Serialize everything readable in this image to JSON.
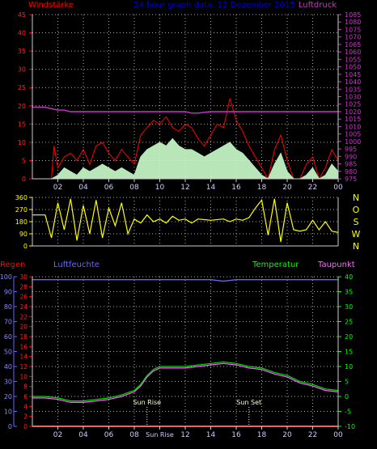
{
  "chart_data": [
    {
      "type": "line",
      "panel": "wind",
      "title": "24 hour graph data, 12 Dezember 2015",
      "left_label": "Windstärke",
      "right_label": "Luftdruck",
      "ylim": [
        0,
        45
      ],
      "y_ticks": [
        0,
        5,
        10,
        15,
        20,
        25,
        30,
        35,
        40,
        45
      ],
      "y2lim": [
        975,
        1085
      ],
      "y2_ticks": [
        975,
        980,
        985,
        990,
        995,
        1000,
        1005,
        1010,
        1015,
        1020,
        1025,
        1030,
        1035,
        1040,
        1045,
        1050,
        1055,
        1060,
        1065,
        1070,
        1075,
        1080,
        1085
      ],
      "x_ticks": [
        "02",
        "04",
        "06",
        "08",
        "10",
        "12",
        "14",
        "16",
        "18",
        "20",
        "22",
        "00"
      ],
      "grid": true,
      "series": [
        {
          "key": "gust",
          "color": "#ff0000",
          "x": [
            0,
            0.5,
            1,
            1.5,
            1.7,
            2,
            2.5,
            3,
            3.5,
            4,
            4.5,
            5,
            5.5,
            6,
            6.5,
            7,
            7.5,
            8,
            8.5,
            9,
            9.5,
            10,
            10.5,
            11,
            11.5,
            12,
            12.5,
            13,
            13.5,
            14,
            14.5,
            15,
            15.5,
            16,
            16.5,
            17,
            17.5,
            18,
            18.5,
            19,
            19.5,
            20,
            20.5,
            21,
            21.5,
            22,
            22.5,
            23,
            23.5,
            24
          ],
          "y": [
            0,
            0,
            0,
            0,
            9,
            3,
            6,
            7,
            5,
            8,
            4,
            9,
            10,
            7,
            5,
            8,
            6,
            4,
            12,
            14,
            16,
            15,
            17,
            14,
            13,
            15,
            14,
            11,
            9,
            12,
            15,
            14,
            22,
            16,
            13,
            9,
            6,
            3,
            0,
            8,
            12,
            5,
            0,
            0,
            4,
            6,
            0,
            3,
            8,
            5
          ]
        },
        {
          "key": "average",
          "color": "#ccffcc",
          "x": [
            0,
            0.5,
            1,
            1.5,
            2,
            2.5,
            3,
            3.5,
            4,
            4.5,
            5,
            5.5,
            6,
            6.5,
            7,
            7.5,
            8,
            8.5,
            9,
            9.5,
            10,
            10.5,
            11,
            11.5,
            12,
            12.5,
            13,
            13.5,
            14,
            14.5,
            15,
            15.5,
            16,
            16.5,
            17,
            17.5,
            18,
            18.5,
            19,
            19.5,
            20,
            20.5,
            21,
            21.5,
            22,
            22.5,
            23,
            23.5,
            24
          ],
          "y": [
            0,
            0,
            0,
            0,
            1,
            3,
            2,
            1,
            3,
            2,
            3,
            4,
            3,
            2,
            3,
            2,
            1,
            6,
            8,
            9,
            10,
            9,
            11,
            9,
            8,
            8,
            7,
            6,
            7,
            8,
            9,
            10,
            8,
            7,
            5,
            3,
            1,
            0,
            4,
            7,
            2,
            0,
            0,
            1,
            3,
            0,
            1,
            4,
            2
          ]
        },
        {
          "key": "pressure",
          "color": "#cc33cc",
          "x": [
            0,
            1,
            1.5,
            2,
            2.5,
            3,
            4,
            8,
            12,
            12.5,
            13,
            14,
            18,
            20,
            22,
            24
          ],
          "y": [
            1023,
            1023,
            1022,
            1021,
            1021,
            1020,
            1020,
            1020,
            1020,
            1019,
            1019,
            1020,
            1020,
            1020,
            1020,
            1020
          ]
        }
      ]
    },
    {
      "type": "line",
      "panel": "direction",
      "ylim": [
        0,
        360
      ],
      "y_ticks": [
        0,
        90,
        180,
        270,
        360
      ],
      "compass": [
        "N",
        "W",
        "S",
        "O",
        "N"
      ],
      "grid": true,
      "series": [
        {
          "key": "direction",
          "color": "#ffff00",
          "x": [
            0,
            1,
            1.5,
            2,
            2.5,
            3,
            3.5,
            4,
            4.5,
            5,
            5.5,
            6,
            6.5,
            7,
            7.5,
            8,
            8.5,
            9,
            9.5,
            10,
            10.5,
            11,
            11.5,
            12,
            12.5,
            13,
            14,
            15,
            15.5,
            16,
            16.5,
            17,
            17.5,
            18,
            18.5,
            19,
            19.5,
            20,
            20.5,
            21,
            21.5,
            22,
            22.5,
            23,
            23.5,
            24
          ],
          "y": [
            230,
            230,
            60,
            320,
            120,
            350,
            40,
            300,
            90,
            340,
            60,
            280,
            150,
            320,
            90,
            200,
            170,
            230,
            180,
            200,
            170,
            220,
            190,
            200,
            170,
            200,
            190,
            200,
            180,
            200,
            190,
            210,
            280,
            340,
            80,
            350,
            30,
            320,
            120,
            110,
            120,
            190,
            120,
            180,
            110,
            100
          ]
        }
      ]
    },
    {
      "type": "line",
      "panel": "temperature",
      "labels": {
        "rain": "Regen",
        "humidity": "Luftfeuchte",
        "temperature": "Temperatur",
        "dewpoint": "Taupunkt",
        "sunrise": "Sun Rise",
        "sunset": "Sun Set"
      },
      "y_rain_ticks": [
        0,
        2,
        4,
        6,
        8,
        10,
        12,
        14,
        16,
        18,
        20,
        22,
        24,
        26,
        28,
        30
      ],
      "y_humidity_ticks": [
        0,
        10,
        20,
        30,
        40,
        50,
        60,
        70,
        80,
        90,
        100
      ],
      "y_temp_ticks": [
        -10,
        -5,
        0,
        5,
        10,
        15,
        20,
        25,
        30,
        35,
        40
      ],
      "y_temp_lim": [
        -10,
        40
      ],
      "x_ticks": [
        "02",
        "04",
        "06",
        "08",
        "Sun Rise",
        "12",
        "14",
        "16",
        "18",
        "20",
        "22",
        "00"
      ],
      "sunrise_hour": 9,
      "sunset_hour": 17,
      "grid": true,
      "series": [
        {
          "key": "humidity",
          "color": "#6666ff",
          "x": [
            0,
            6,
            9,
            12,
            14,
            15,
            16,
            18,
            21,
            24
          ],
          "y": [
            98,
            98,
            98,
            98,
            98,
            97,
            98,
            98,
            98,
            98
          ]
        },
        {
          "key": "temperature",
          "color": "#00dd00",
          "x": [
            0,
            1,
            2,
            3,
            4,
            5,
            6,
            7,
            8,
            8.5,
            9,
            9.5,
            10,
            11,
            12,
            13,
            14,
            15,
            16,
            17,
            18,
            19,
            20,
            21,
            22,
            23,
            24
          ],
          "y": [
            0,
            0,
            -0.5,
            -1.5,
            -1.5,
            -1,
            -0.5,
            0.5,
            2,
            4,
            7,
            9,
            10,
            10,
            10,
            10.5,
            11,
            11.5,
            11,
            10,
            9.5,
            8,
            7,
            5,
            4,
            2.5,
            2
          ]
        },
        {
          "key": "dewpoint",
          "color": "#ff66ff",
          "x": [
            0,
            1,
            2,
            3,
            4,
            5,
            6,
            7,
            8,
            8.5,
            9,
            9.5,
            10,
            11,
            12,
            13,
            14,
            15,
            16,
            17,
            18,
            19,
            20,
            21,
            22,
            23,
            24
          ],
          "y": [
            -0.5,
            -0.5,
            -1,
            -2,
            -2,
            -1.5,
            -1,
            0,
            1.5,
            3.5,
            6.5,
            8.5,
            9.5,
            9.5,
            9.5,
            10,
            10.5,
            11,
            10.5,
            9.5,
            9,
            7.5,
            6.5,
            4.5,
            3.5,
            2,
            1.5
          ]
        },
        {
          "key": "rain",
          "color": "#ff0000",
          "x": [
            0,
            24
          ],
          "y": [
            0,
            0
          ]
        }
      ]
    }
  ]
}
